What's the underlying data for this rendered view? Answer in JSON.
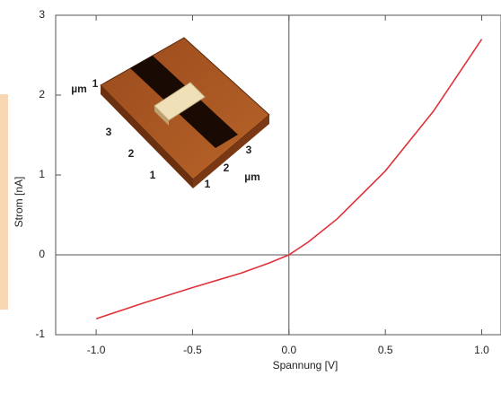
{
  "chart_data": {
    "type": "line",
    "x_label": "Spannung [V]",
    "y_label": "Strom  [nA]",
    "x": [
      -1.0,
      -0.75,
      -0.5,
      -0.25,
      -0.1,
      0.0,
      0.1,
      0.25,
      0.5,
      0.75,
      1.0
    ],
    "series": [
      {
        "color": "#e0323a",
        "values": [
          -0.8,
          -0.6,
          -0.41,
          -0.23,
          -0.1,
          0.0,
          0.16,
          0.45,
          1.05,
          1.8,
          2.7
        ]
      }
    ],
    "xlim": [
      -1.21,
      1.1
    ],
    "ylim": [
      -1,
      3
    ],
    "xticks": [
      {
        "value": -1,
        "label": "-1.0"
      },
      -0.5,
      {
        "value": 0,
        "label": "0.0"
      },
      0.5,
      {
        "value": 1,
        "label": "1.0"
      }
    ],
    "yticks": [
      -1,
      0,
      1,
      2,
      3
    ],
    "inset_labels": [
      "µm",
      "1",
      "3",
      "2",
      "1",
      "1",
      "2",
      "3",
      "µm"
    ]
  }
}
